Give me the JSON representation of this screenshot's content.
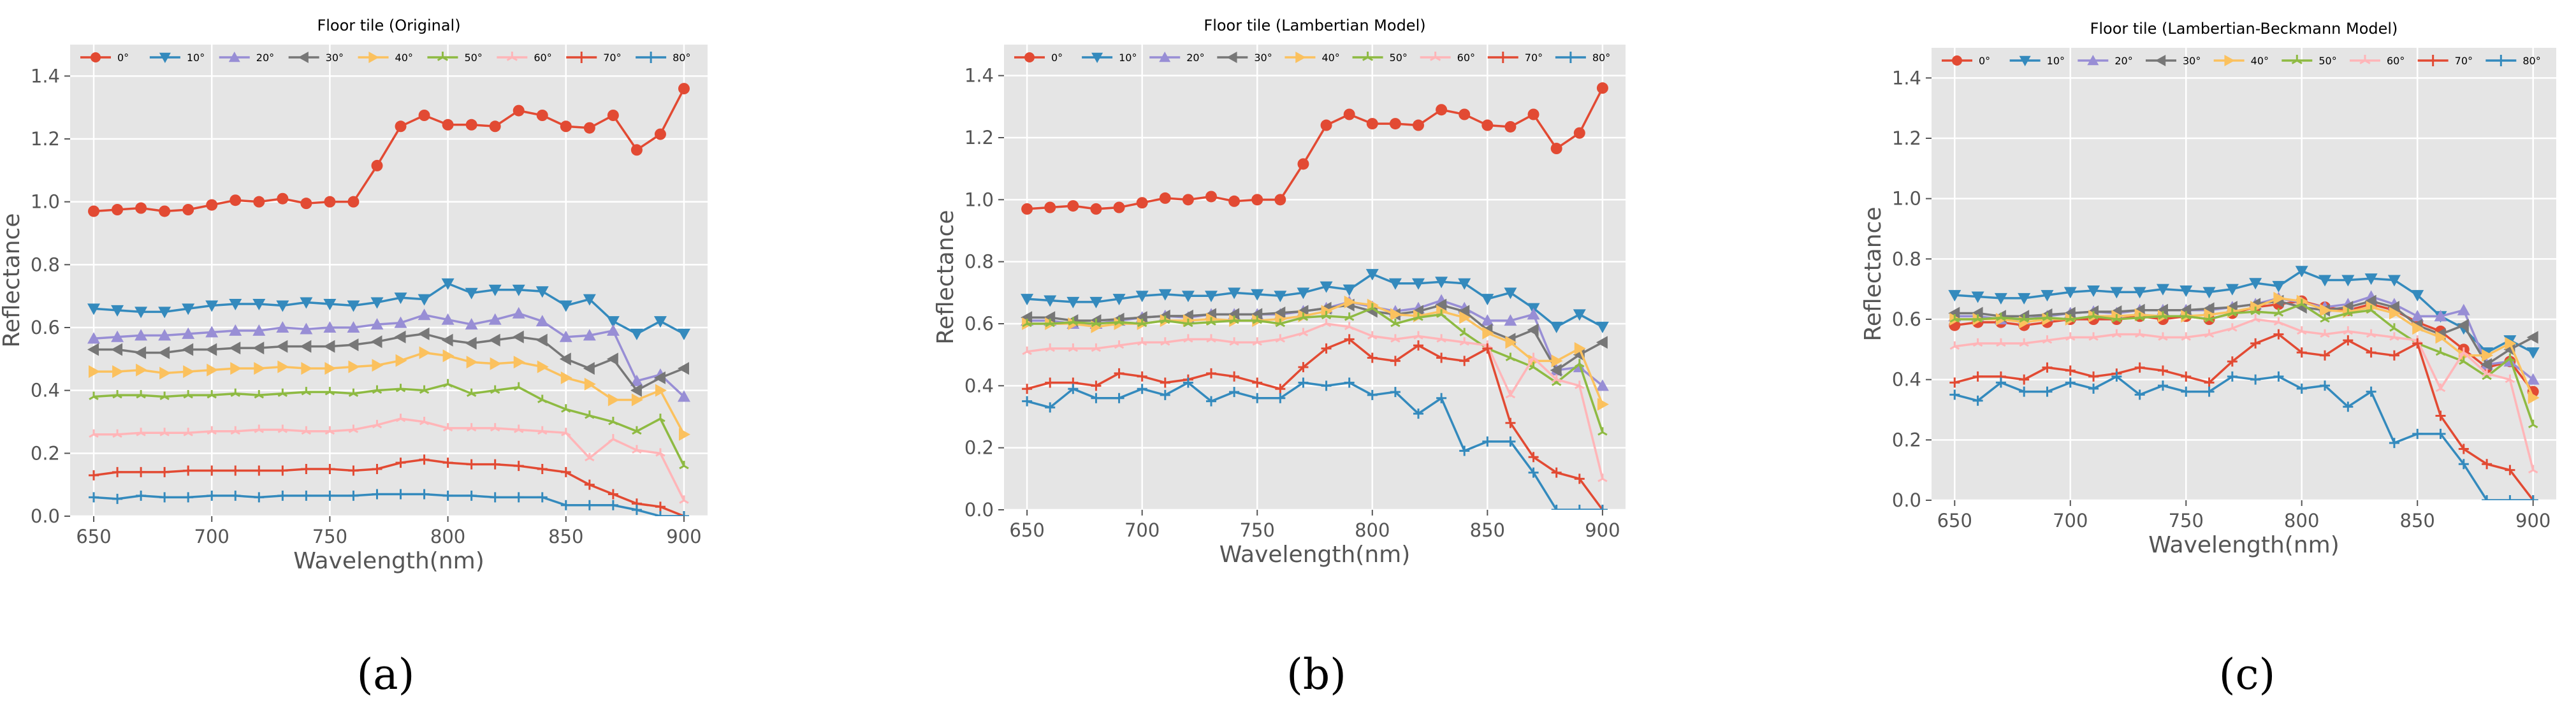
{
  "figure": {
    "panel_labels": [
      "(a)",
      "(b)",
      "(c)"
    ]
  },
  "style": {
    "background": "#e5e5e5",
    "grid": "#ffffff",
    "series_colors": [
      "#e24a33",
      "#348abd",
      "#988ed5",
      "#777777",
      "#fbc15e",
      "#8eba42",
      "#ffb5b8",
      "#e24a33",
      "#348abd"
    ]
  },
  "chart_data": [
    {
      "type": "line",
      "title": "Floor tile (Original)",
      "xlabel": "Wavelength(nm)",
      "ylabel": "Reflectance",
      "xlim": [
        640,
        910
      ],
      "ylim": [
        0,
        1.5
      ],
      "xticks": [
        650,
        700,
        750,
        800,
        850,
        900
      ],
      "yticks": [
        0.0,
        0.2,
        0.4,
        0.6,
        0.8,
        1.0,
        1.2,
        1.4
      ],
      "x": [
        650,
        660,
        670,
        680,
        690,
        700,
        710,
        720,
        730,
        740,
        750,
        760,
        770,
        780,
        790,
        800,
        810,
        820,
        830,
        840,
        850,
        860,
        870,
        880,
        890,
        900
      ],
      "series": [
        {
          "name": "0°",
          "marker": "circle",
          "values": [
            0.97,
            0.975,
            0.98,
            0.97,
            0.975,
            0.99,
            1.005,
            1.0,
            1.01,
            0.995,
            1.0,
            1.0,
            1.115,
            1.24,
            1.275,
            1.245,
            1.245,
            1.24,
            1.29,
            1.275,
            1.24,
            1.235,
            1.275,
            1.165,
            1.215,
            1.36
          ]
        },
        {
          "name": "10°",
          "marker": "triangle-down",
          "values": [
            0.66,
            0.655,
            0.65,
            0.65,
            0.66,
            0.67,
            0.675,
            0.675,
            0.67,
            0.68,
            0.675,
            0.67,
            0.68,
            0.695,
            0.69,
            0.74,
            0.71,
            0.72,
            0.72,
            0.715,
            0.67,
            0.69,
            0.62,
            0.58,
            0.62,
            0.58
          ]
        },
        {
          "name": "20°",
          "marker": "triangle-up",
          "values": [
            0.565,
            0.57,
            0.575,
            0.575,
            0.58,
            0.585,
            0.59,
            0.59,
            0.6,
            0.595,
            0.6,
            0.6,
            0.61,
            0.615,
            0.64,
            0.625,
            0.61,
            0.625,
            0.645,
            0.62,
            0.57,
            0.575,
            0.59,
            0.43,
            0.45,
            0.38
          ]
        },
        {
          "name": "30°",
          "marker": "triangle-left",
          "values": [
            0.53,
            0.53,
            0.52,
            0.52,
            0.53,
            0.53,
            0.535,
            0.535,
            0.54,
            0.54,
            0.54,
            0.545,
            0.555,
            0.57,
            0.58,
            0.56,
            0.55,
            0.56,
            0.57,
            0.56,
            0.5,
            0.47,
            0.5,
            0.4,
            0.44,
            0.47
          ]
        },
        {
          "name": "40°",
          "marker": "triangle-right",
          "values": [
            0.46,
            0.46,
            0.465,
            0.455,
            0.46,
            0.465,
            0.47,
            0.47,
            0.475,
            0.47,
            0.47,
            0.475,
            0.48,
            0.495,
            0.52,
            0.51,
            0.49,
            0.485,
            0.49,
            0.475,
            0.44,
            0.42,
            0.37,
            0.37,
            0.4,
            0.26
          ]
        },
        {
          "name": "50°",
          "marker": "tri",
          "values": [
            0.38,
            0.385,
            0.385,
            0.38,
            0.385,
            0.385,
            0.39,
            0.385,
            0.39,
            0.395,
            0.395,
            0.39,
            0.4,
            0.405,
            0.4,
            0.42,
            0.39,
            0.4,
            0.41,
            0.37,
            0.34,
            0.32,
            0.3,
            0.27,
            0.31,
            0.16
          ]
        },
        {
          "name": "60°",
          "marker": "tri",
          "values": [
            0.26,
            0.26,
            0.265,
            0.265,
            0.265,
            0.27,
            0.27,
            0.275,
            0.275,
            0.27,
            0.27,
            0.275,
            0.29,
            0.31,
            0.3,
            0.28,
            0.28,
            0.28,
            0.275,
            0.27,
            0.265,
            0.185,
            0.245,
            0.21,
            0.2,
            0.05
          ]
        },
        {
          "name": "70°",
          "marker": "plus",
          "values": [
            0.13,
            0.14,
            0.14,
            0.14,
            0.145,
            0.145,
            0.145,
            0.145,
            0.145,
            0.15,
            0.15,
            0.145,
            0.15,
            0.17,
            0.18,
            0.17,
            0.165,
            0.165,
            0.16,
            0.15,
            0.14,
            0.1,
            0.07,
            0.04,
            0.03,
            0.0
          ]
        },
        {
          "name": "80°",
          "marker": "plus",
          "values": [
            0.06,
            0.055,
            0.065,
            0.06,
            0.06,
            0.065,
            0.065,
            0.06,
            0.065,
            0.065,
            0.065,
            0.065,
            0.07,
            0.07,
            0.07,
            0.065,
            0.065,
            0.06,
            0.06,
            0.06,
            0.035,
            0.035,
            0.035,
            0.02,
            0.0,
            0.0
          ]
        }
      ]
    },
    {
      "type": "line",
      "title": "Floor tile (Lambertian Model)",
      "xlabel": "Wavelength(nm)",
      "ylabel": "Reflectance",
      "xlim": [
        640,
        910
      ],
      "ylim": [
        0,
        1.5
      ],
      "xticks": [
        650,
        700,
        750,
        800,
        850,
        900
      ],
      "yticks": [
        0.0,
        0.2,
        0.4,
        0.6,
        0.8,
        1.0,
        1.2,
        1.4
      ],
      "x": [
        650,
        660,
        670,
        680,
        690,
        700,
        710,
        720,
        730,
        740,
        750,
        760,
        770,
        780,
        790,
        800,
        810,
        820,
        830,
        840,
        850,
        860,
        870,
        880,
        890,
        900
      ],
      "series": [
        {
          "name": "0°",
          "marker": "circle",
          "values": [
            0.97,
            0.975,
            0.98,
            0.97,
            0.975,
            0.99,
            1.005,
            1.0,
            1.01,
            0.995,
            1.0,
            1.0,
            1.115,
            1.24,
            1.275,
            1.245,
            1.245,
            1.24,
            1.29,
            1.275,
            1.24,
            1.235,
            1.275,
            1.165,
            1.215,
            1.36
          ]
        },
        {
          "name": "10°",
          "marker": "triangle-down",
          "values": [
            0.68,
            0.675,
            0.67,
            0.67,
            0.68,
            0.69,
            0.695,
            0.69,
            0.69,
            0.7,
            0.695,
            0.69,
            0.7,
            0.72,
            0.71,
            0.76,
            0.73,
            0.73,
            0.735,
            0.73,
            0.68,
            0.7,
            0.65,
            0.59,
            0.63,
            0.59
          ]
        },
        {
          "name": "20°",
          "marker": "triangle-up",
          "values": [
            0.61,
            0.61,
            0.6,
            0.6,
            0.61,
            0.62,
            0.625,
            0.62,
            0.63,
            0.63,
            0.63,
            0.63,
            0.64,
            0.65,
            0.67,
            0.655,
            0.64,
            0.65,
            0.675,
            0.65,
            0.61,
            0.61,
            0.63,
            0.45,
            0.46,
            0.4
          ]
        },
        {
          "name": "30°",
          "marker": "triangle-left",
          "values": [
            0.62,
            0.62,
            0.61,
            0.61,
            0.615,
            0.62,
            0.625,
            0.625,
            0.63,
            0.63,
            0.63,
            0.635,
            0.64,
            0.65,
            0.66,
            0.64,
            0.63,
            0.64,
            0.66,
            0.64,
            0.58,
            0.55,
            0.58,
            0.45,
            0.5,
            0.54
          ]
        },
        {
          "name": "40°",
          "marker": "triangle-right",
          "values": [
            0.6,
            0.6,
            0.6,
            0.59,
            0.6,
            0.6,
            0.61,
            0.61,
            0.615,
            0.61,
            0.61,
            0.615,
            0.625,
            0.64,
            0.67,
            0.66,
            0.63,
            0.625,
            0.64,
            0.62,
            0.57,
            0.54,
            0.48,
            0.48,
            0.52,
            0.34
          ]
        },
        {
          "name": "50°",
          "marker": "tri",
          "values": [
            0.6,
            0.6,
            0.605,
            0.6,
            0.605,
            0.6,
            0.61,
            0.6,
            0.605,
            0.61,
            0.61,
            0.6,
            0.62,
            0.625,
            0.62,
            0.65,
            0.6,
            0.62,
            0.63,
            0.57,
            0.52,
            0.49,
            0.46,
            0.41,
            0.47,
            0.25
          ]
        },
        {
          "name": "60°",
          "marker": "tri",
          "values": [
            0.51,
            0.52,
            0.52,
            0.52,
            0.53,
            0.54,
            0.54,
            0.55,
            0.55,
            0.54,
            0.54,
            0.55,
            0.57,
            0.6,
            0.59,
            0.56,
            0.55,
            0.56,
            0.55,
            0.54,
            0.53,
            0.37,
            0.49,
            0.42,
            0.4,
            0.1
          ]
        },
        {
          "name": "70°",
          "marker": "plus",
          "values": [
            0.39,
            0.41,
            0.41,
            0.4,
            0.44,
            0.43,
            0.41,
            0.42,
            0.44,
            0.43,
            0.41,
            0.39,
            0.46,
            0.52,
            0.55,
            0.49,
            0.48,
            0.53,
            0.49,
            0.48,
            0.52,
            0.28,
            0.17,
            0.12,
            0.1,
            0.0
          ]
        },
        {
          "name": "80°",
          "marker": "plus",
          "values": [
            0.35,
            0.33,
            0.39,
            0.36,
            0.36,
            0.39,
            0.37,
            0.41,
            0.35,
            0.38,
            0.36,
            0.36,
            0.41,
            0.4,
            0.41,
            0.37,
            0.38,
            0.31,
            0.36,
            0.19,
            0.22,
            0.22,
            0.12,
            0.0,
            0.0,
            0.0
          ]
        }
      ]
    },
    {
      "type": "line",
      "title": "Floor tile (Lambertian-Beckmann Model)",
      "xlabel": "Wavelength(nm)",
      "ylabel": "Reflectance",
      "xlim": [
        640,
        910
      ],
      "ylim": [
        0,
        1.5
      ],
      "xticks": [
        650,
        700,
        750,
        800,
        850,
        900
      ],
      "yticks": [
        0.0,
        0.2,
        0.4,
        0.6,
        0.8,
        1.0,
        1.2,
        1.4
      ],
      "x": [
        650,
        660,
        670,
        680,
        690,
        700,
        710,
        720,
        730,
        740,
        750,
        760,
        770,
        780,
        790,
        800,
        810,
        820,
        830,
        840,
        850,
        860,
        870,
        880,
        890,
        900
      ],
      "series": [
        {
          "name": "0°",
          "marker": "circle",
          "values": [
            0.58,
            0.59,
            0.59,
            0.58,
            0.59,
            0.6,
            0.6,
            0.6,
            0.61,
            0.6,
            0.61,
            0.6,
            0.62,
            0.64,
            0.65,
            0.66,
            0.64,
            0.63,
            0.65,
            0.63,
            0.59,
            0.56,
            0.5,
            0.44,
            0.46,
            0.36
          ]
        },
        {
          "name": "10°",
          "marker": "triangle-down",
          "values": [
            0.68,
            0.675,
            0.67,
            0.67,
            0.68,
            0.69,
            0.695,
            0.69,
            0.69,
            0.7,
            0.695,
            0.69,
            0.7,
            0.72,
            0.71,
            0.76,
            0.73,
            0.73,
            0.735,
            0.73,
            0.68,
            0.61,
            0.57,
            0.49,
            0.53,
            0.49
          ]
        },
        {
          "name": "20°",
          "marker": "triangle-up",
          "values": [
            0.61,
            0.61,
            0.6,
            0.6,
            0.61,
            0.62,
            0.625,
            0.62,
            0.63,
            0.63,
            0.63,
            0.63,
            0.64,
            0.65,
            0.67,
            0.655,
            0.64,
            0.65,
            0.675,
            0.65,
            0.61,
            0.61,
            0.63,
            0.45,
            0.46,
            0.4
          ]
        },
        {
          "name": "30°",
          "marker": "triangle-left",
          "values": [
            0.62,
            0.62,
            0.61,
            0.61,
            0.615,
            0.62,
            0.625,
            0.625,
            0.63,
            0.63,
            0.63,
            0.635,
            0.64,
            0.65,
            0.66,
            0.64,
            0.63,
            0.64,
            0.66,
            0.64,
            0.58,
            0.55,
            0.58,
            0.45,
            0.5,
            0.54
          ]
        },
        {
          "name": "40°",
          "marker": "triangle-right",
          "values": [
            0.6,
            0.6,
            0.6,
            0.59,
            0.6,
            0.6,
            0.61,
            0.61,
            0.615,
            0.61,
            0.61,
            0.615,
            0.625,
            0.64,
            0.67,
            0.66,
            0.63,
            0.625,
            0.64,
            0.62,
            0.57,
            0.54,
            0.48,
            0.48,
            0.52,
            0.34
          ]
        },
        {
          "name": "50°",
          "marker": "tri",
          "values": [
            0.6,
            0.6,
            0.605,
            0.6,
            0.605,
            0.6,
            0.61,
            0.6,
            0.605,
            0.61,
            0.61,
            0.6,
            0.62,
            0.625,
            0.62,
            0.65,
            0.6,
            0.62,
            0.63,
            0.57,
            0.52,
            0.49,
            0.46,
            0.41,
            0.47,
            0.25
          ]
        },
        {
          "name": "60°",
          "marker": "tri",
          "values": [
            0.51,
            0.52,
            0.52,
            0.52,
            0.53,
            0.54,
            0.54,
            0.55,
            0.55,
            0.54,
            0.54,
            0.55,
            0.57,
            0.6,
            0.59,
            0.56,
            0.55,
            0.56,
            0.55,
            0.54,
            0.53,
            0.37,
            0.49,
            0.42,
            0.4,
            0.1
          ]
        },
        {
          "name": "70°",
          "marker": "plus",
          "values": [
            0.39,
            0.41,
            0.41,
            0.4,
            0.44,
            0.43,
            0.41,
            0.42,
            0.44,
            0.43,
            0.41,
            0.39,
            0.46,
            0.52,
            0.55,
            0.49,
            0.48,
            0.53,
            0.49,
            0.48,
            0.52,
            0.28,
            0.17,
            0.12,
            0.1,
            0.0
          ]
        },
        {
          "name": "80°",
          "marker": "plus",
          "values": [
            0.35,
            0.33,
            0.39,
            0.36,
            0.36,
            0.39,
            0.37,
            0.41,
            0.35,
            0.38,
            0.36,
            0.36,
            0.41,
            0.4,
            0.41,
            0.37,
            0.38,
            0.31,
            0.36,
            0.19,
            0.22,
            0.22,
            0.12,
            0.0,
            0.0,
            0.0
          ]
        }
      ]
    }
  ]
}
